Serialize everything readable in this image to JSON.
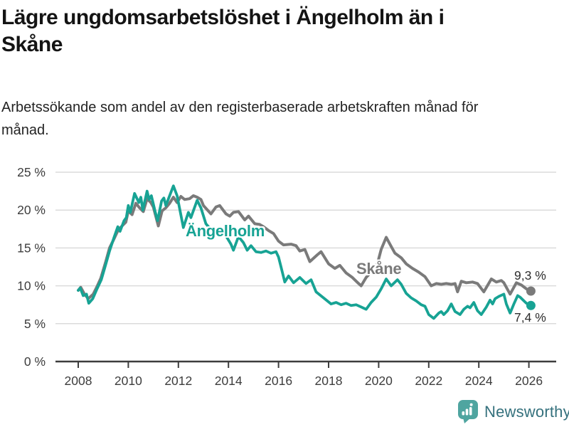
{
  "header": {
    "title": "Lägre ungdomsarbetslöshet i Ängelholm än i Skåne",
    "subtitle": "Arbetssökande som andel av den registerbaserade arbetskraften månad för månad."
  },
  "colors": {
    "accent_teal": "#17A394",
    "accent_gray": "#7A7A7A",
    "grid": "#DBDBDB",
    "axis": "#3D3D3D",
    "axis_text": "#3D3D3D",
    "title_text": "#141414",
    "logo_teal": "#4FA5A0",
    "brand_text": "#35717D"
  },
  "footer": {
    "brand": "Newsworthy"
  },
  "chart_data": {
    "type": "line",
    "title": "Lägre ungdomsarbetslöshet i Ängelholm än i Skåne",
    "subtitle": "Arbetssökande som andel av den registerbaserade arbetskraften månad för månad.",
    "unit": "%",
    "grid": true,
    "legend_position": "inline-labels",
    "ylim": [
      0,
      25
    ],
    "xlim": [
      2007.1,
      2027.1
    ],
    "y_axis": {
      "ticks": [
        {
          "value": 0,
          "label": "0 %"
        },
        {
          "value": 5,
          "label": "5 %"
        },
        {
          "value": 10,
          "label": "10 %"
        },
        {
          "value": 15,
          "label": "15 %"
        },
        {
          "value": 20,
          "label": "20 %"
        },
        {
          "value": 25,
          "label": "25 %"
        }
      ]
    },
    "x_axis": {
      "ticks": [
        {
          "value": 2008,
          "label": "2008"
        },
        {
          "value": 2010,
          "label": "2010"
        },
        {
          "value": 2012,
          "label": "2012"
        },
        {
          "value": 2014,
          "label": "2014"
        },
        {
          "value": 2016,
          "label": "2016"
        },
        {
          "value": 2018,
          "label": "2018"
        },
        {
          "value": 2020,
          "label": "2020"
        },
        {
          "value": 2022,
          "label": "2022"
        },
        {
          "value": 2024,
          "label": "2024"
        },
        {
          "value": 2026,
          "label": "2026"
        }
      ]
    },
    "series": [
      {
        "name": "Skåne",
        "color": "#7A7A7A",
        "width": 4,
        "end_label": "9,3 %",
        "end_value": 9.3,
        "points": [
          [
            2008.0,
            9.4
          ],
          [
            2008.1,
            9.8
          ],
          [
            2008.25,
            8.9
          ],
          [
            2008.4,
            8.3
          ],
          [
            2008.6,
            8.9
          ],
          [
            2008.75,
            9.9
          ],
          [
            2008.9,
            11.0
          ],
          [
            2009.1,
            13.2
          ],
          [
            2009.25,
            15.0
          ],
          [
            2009.4,
            16.0
          ],
          [
            2009.6,
            17.4
          ],
          [
            2009.75,
            17.9
          ],
          [
            2009.9,
            18.4
          ],
          [
            2010.0,
            19.9
          ],
          [
            2010.15,
            19.4
          ],
          [
            2010.3,
            20.9
          ],
          [
            2010.45,
            20.3
          ],
          [
            2010.6,
            19.8
          ],
          [
            2010.75,
            21.5
          ],
          [
            2010.9,
            21.0
          ],
          [
            2011.0,
            20.4
          ],
          [
            2011.2,
            17.9
          ],
          [
            2011.35,
            19.9
          ],
          [
            2011.5,
            20.3
          ],
          [
            2011.65,
            20.9
          ],
          [
            2011.8,
            21.7
          ],
          [
            2011.95,
            21.0
          ],
          [
            2012.1,
            21.8
          ],
          [
            2012.25,
            21.4
          ],
          [
            2012.45,
            21.5
          ],
          [
            2012.6,
            21.9
          ],
          [
            2012.75,
            21.7
          ],
          [
            2012.9,
            21.4
          ],
          [
            2013.0,
            20.6
          ],
          [
            2013.3,
            19.5
          ],
          [
            2013.5,
            20.4
          ],
          [
            2013.65,
            20.6
          ],
          [
            2013.9,
            19.5
          ],
          [
            2014.05,
            19.2
          ],
          [
            2014.2,
            19.7
          ],
          [
            2014.4,
            19.8
          ],
          [
            2014.65,
            18.7
          ],
          [
            2014.8,
            19.2
          ],
          [
            2015.05,
            18.2
          ],
          [
            2015.25,
            18.1
          ],
          [
            2015.4,
            17.8
          ],
          [
            2015.6,
            17.3
          ],
          [
            2015.8,
            16.9
          ],
          [
            2016.0,
            15.9
          ],
          [
            2016.2,
            15.4
          ],
          [
            2016.5,
            15.5
          ],
          [
            2016.7,
            15.3
          ],
          [
            2016.85,
            14.6
          ],
          [
            2017.05,
            14.8
          ],
          [
            2017.25,
            13.2
          ],
          [
            2017.55,
            14.1
          ],
          [
            2017.7,
            14.5
          ],
          [
            2018.0,
            12.9
          ],
          [
            2018.25,
            12.3
          ],
          [
            2018.45,
            12.7
          ],
          [
            2018.7,
            11.7
          ],
          [
            2018.95,
            11.1
          ],
          [
            2019.2,
            10.3
          ],
          [
            2019.3,
            10.0
          ],
          [
            2019.5,
            11.1
          ],
          [
            2019.75,
            12.0
          ],
          [
            2019.95,
            12.9
          ],
          [
            2020.1,
            14.8
          ],
          [
            2020.3,
            16.4
          ],
          [
            2020.5,
            15.2
          ],
          [
            2020.65,
            14.3
          ],
          [
            2020.9,
            13.7
          ],
          [
            2021.1,
            12.9
          ],
          [
            2021.35,
            12.3
          ],
          [
            2021.6,
            11.8
          ],
          [
            2021.85,
            11.2
          ],
          [
            2022.1,
            10.0
          ],
          [
            2022.3,
            10.3
          ],
          [
            2022.5,
            10.2
          ],
          [
            2022.7,
            10.3
          ],
          [
            2022.9,
            10.2
          ],
          [
            2023.05,
            10.3
          ],
          [
            2023.15,
            9.2
          ],
          [
            2023.3,
            10.6
          ],
          [
            2023.5,
            10.4
          ],
          [
            2023.75,
            10.5
          ],
          [
            2023.95,
            10.3
          ],
          [
            2024.2,
            9.2
          ],
          [
            2024.5,
            10.9
          ],
          [
            2024.7,
            10.5
          ],
          [
            2024.9,
            10.7
          ],
          [
            2025.0,
            10.4
          ],
          [
            2025.25,
            8.9
          ],
          [
            2025.5,
            10.4
          ],
          [
            2025.7,
            10.1
          ],
          [
            2025.9,
            9.6
          ],
          [
            2026.08,
            9.3
          ]
        ]
      },
      {
        "name": "Ängelholm",
        "color": "#17A394",
        "width": 3.8,
        "end_label": "7,4 %",
        "end_value": 7.4,
        "points": [
          [
            2008.0,
            9.4
          ],
          [
            2008.08,
            9.7
          ],
          [
            2008.2,
            8.7
          ],
          [
            2008.33,
            8.9
          ],
          [
            2008.42,
            7.7
          ],
          [
            2008.58,
            8.3
          ],
          [
            2008.75,
            9.6
          ],
          [
            2008.92,
            10.8
          ],
          [
            2009.08,
            12.6
          ],
          [
            2009.25,
            14.6
          ],
          [
            2009.42,
            16.3
          ],
          [
            2009.58,
            17.8
          ],
          [
            2009.67,
            17.2
          ],
          [
            2009.83,
            18.6
          ],
          [
            2009.92,
            19.0
          ],
          [
            2010.0,
            20.6
          ],
          [
            2010.08,
            19.7
          ],
          [
            2010.25,
            22.2
          ],
          [
            2010.42,
            21.0
          ],
          [
            2010.5,
            21.7
          ],
          [
            2010.58,
            20.0
          ],
          [
            2010.75,
            22.5
          ],
          [
            2010.83,
            21.4
          ],
          [
            2010.92,
            21.9
          ],
          [
            2011.08,
            19.7
          ],
          [
            2011.17,
            18.6
          ],
          [
            2011.33,
            21.2
          ],
          [
            2011.42,
            21.6
          ],
          [
            2011.5,
            20.6
          ],
          [
            2011.8,
            23.2
          ],
          [
            2011.95,
            21.9
          ],
          [
            2012.2,
            17.7
          ],
          [
            2012.4,
            19.7
          ],
          [
            2012.5,
            19.0
          ],
          [
            2012.75,
            21.3
          ],
          [
            2012.9,
            20.3
          ],
          [
            2013.1,
            18.2
          ],
          [
            2013.3,
            17.4
          ],
          [
            2013.5,
            16.9
          ],
          [
            2013.7,
            17.3
          ],
          [
            2013.9,
            16.6
          ],
          [
            2014.1,
            15.5
          ],
          [
            2014.2,
            14.7
          ],
          [
            2014.4,
            16.5
          ],
          [
            2014.6,
            15.7
          ],
          [
            2014.75,
            14.7
          ],
          [
            2014.9,
            15.3
          ],
          [
            2015.1,
            14.5
          ],
          [
            2015.3,
            14.4
          ],
          [
            2015.5,
            14.6
          ],
          [
            2015.7,
            14.3
          ],
          [
            2015.9,
            14.5
          ],
          [
            2016.0,
            13.8
          ],
          [
            2016.1,
            12.5
          ],
          [
            2016.25,
            10.5
          ],
          [
            2016.4,
            11.3
          ],
          [
            2016.6,
            10.4
          ],
          [
            2016.85,
            11.1
          ],
          [
            2017.1,
            10.3
          ],
          [
            2017.3,
            10.8
          ],
          [
            2017.5,
            9.2
          ],
          [
            2017.8,
            8.4
          ],
          [
            2018.1,
            7.6
          ],
          [
            2018.3,
            7.8
          ],
          [
            2018.5,
            7.5
          ],
          [
            2018.7,
            7.7
          ],
          [
            2018.9,
            7.4
          ],
          [
            2019.1,
            7.5
          ],
          [
            2019.3,
            7.2
          ],
          [
            2019.5,
            6.9
          ],
          [
            2019.7,
            7.8
          ],
          [
            2019.9,
            8.5
          ],
          [
            2020.1,
            9.6
          ],
          [
            2020.3,
            10.9
          ],
          [
            2020.5,
            10.0
          ],
          [
            2020.75,
            10.8
          ],
          [
            2020.9,
            10.2
          ],
          [
            2021.1,
            9.0
          ],
          [
            2021.3,
            8.4
          ],
          [
            2021.5,
            8.0
          ],
          [
            2021.7,
            7.5
          ],
          [
            2021.85,
            7.3
          ],
          [
            2022.0,
            6.2
          ],
          [
            2022.2,
            5.7
          ],
          [
            2022.4,
            6.4
          ],
          [
            2022.5,
            6.6
          ],
          [
            2022.6,
            6.2
          ],
          [
            2022.75,
            6.7
          ],
          [
            2022.9,
            7.6
          ],
          [
            2023.05,
            6.6
          ],
          [
            2023.25,
            6.2
          ],
          [
            2023.4,
            6.9
          ],
          [
            2023.55,
            7.3
          ],
          [
            2023.65,
            7.1
          ],
          [
            2023.8,
            7.8
          ],
          [
            2023.95,
            6.7
          ],
          [
            2024.1,
            6.2
          ],
          [
            2024.3,
            7.2
          ],
          [
            2024.45,
            8.1
          ],
          [
            2024.55,
            7.6
          ],
          [
            2024.65,
            8.3
          ],
          [
            2024.8,
            8.6
          ],
          [
            2025.0,
            8.9
          ],
          [
            2025.1,
            7.6
          ],
          [
            2025.25,
            6.4
          ],
          [
            2025.4,
            7.6
          ],
          [
            2025.55,
            8.7
          ],
          [
            2025.65,
            8.5
          ],
          [
            2025.9,
            7.7
          ],
          [
            2026.08,
            7.4
          ]
        ]
      }
    ]
  }
}
